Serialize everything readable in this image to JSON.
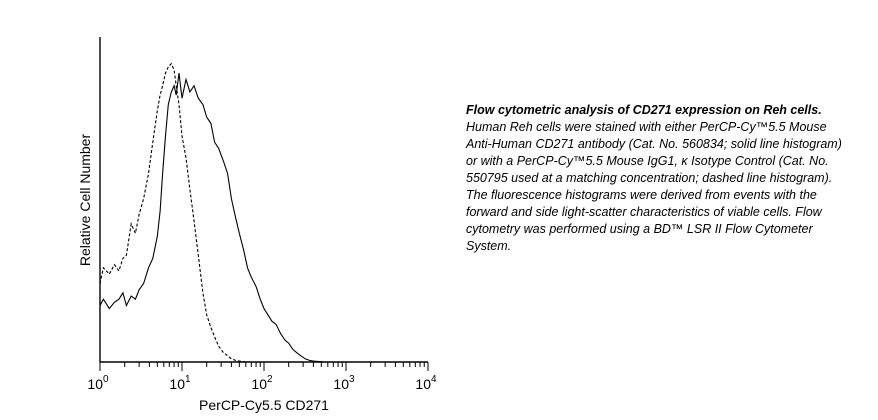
{
  "chart_data": {
    "type": "line",
    "xlabel": "PerCP-Cy5.5 CD271",
    "ylabel": "Relative Cell Number",
    "x_scale": "log",
    "xlim": [
      1,
      10000
    ],
    "ylim": [
      0,
      100
    ],
    "x_ticks": [
      {
        "base": "10",
        "exp": "0",
        "value": 1
      },
      {
        "base": "10",
        "exp": "1",
        "value": 10
      },
      {
        "base": "10",
        "exp": "2",
        "value": 100
      },
      {
        "base": "10",
        "exp": "3",
        "value": 1000
      },
      {
        "base": "10",
        "exp": "4",
        "value": 10000
      }
    ],
    "legend": "none",
    "grid": false,
    "series": [
      {
        "style": "solid",
        "x": [
          1.0,
          1.1,
          1.3,
          1.5,
          1.7,
          1.9,
          2.1,
          2.4,
          2.7,
          3.0,
          3.4,
          3.9,
          4.4,
          5.0,
          5.4,
          5.8,
          6.3,
          6.8,
          7.4,
          8.0,
          8.5,
          9.2,
          10.0,
          11.2,
          12.5,
          14.0,
          15.8,
          18.0,
          20.0,
          22.5,
          25.0,
          28.0,
          32.0,
          36.0,
          40.0,
          45.0,
          50.0,
          56.0,
          63.0,
          70.0,
          80.0,
          90.0,
          100.0,
          112.0,
          125.0,
          140.0,
          160.0,
          180.0,
          200.0,
          225.0,
          250.0,
          280.0,
          320.0,
          360.0,
          400.0,
          450.0,
          500.0,
          560.0,
          630.0,
          800.0,
          1000.0
        ],
        "values": [
          18,
          20,
          17,
          19,
          20,
          22,
          18,
          21,
          20,
          23,
          25,
          30,
          33,
          40,
          48,
          60,
          72,
          82,
          86,
          88,
          85,
          92,
          84,
          90,
          86,
          88,
          84,
          82,
          78,
          76,
          70,
          68,
          64,
          60,
          52,
          46,
          41,
          36,
          30,
          27,
          24,
          20,
          17,
          15,
          13,
          12,
          9,
          7,
          6,
          4,
          3,
          2,
          1,
          0.5,
          0.3,
          0.2,
          0.1,
          0,
          0,
          0,
          0
        ]
      },
      {
        "style": "dashed",
        "x": [
          1.0,
          1.1,
          1.3,
          1.5,
          1.7,
          1.9,
          2.1,
          2.4,
          2.7,
          3.0,
          3.4,
          3.9,
          4.4,
          5.0,
          5.4,
          5.8,
          6.3,
          6.8,
          7.4,
          8.0,
          8.5,
          9.2,
          10.0,
          11.2,
          12.5,
          14.0,
          15.8,
          18.0,
          20.0,
          22.5,
          25.0,
          28.0,
          32.0,
          36.0,
          40.0,
          45.0,
          50.0,
          56.0,
          63.0,
          70.0,
          80.0,
          100.0
        ],
        "values": [
          25,
          30,
          28,
          31,
          29,
          33,
          34,
          44,
          41,
          47,
          52,
          60,
          70,
          80,
          85,
          88,
          92,
          94,
          95,
          93,
          88,
          82,
          72,
          65,
          55,
          45,
          34,
          22,
          15,
          11,
          8,
          5,
          3,
          2,
          1,
          0.5,
          0.3,
          0.1,
          0,
          0,
          0,
          0
        ]
      }
    ]
  },
  "caption": {
    "title": "Flow cytometric analysis of CD271 expression on Reh cells.",
    "body": "Human Reh cells were stained with either PerCP-Cy™5.5 Mouse Anti-Human CD271 antibody (Cat. No. 560834; solid line histogram) or with a PerCP-Cy™5.5 Mouse IgG1, κ Isotype Control (Cat. No. 550795 used at a matching concentration; dashed line histogram). The fluorescence histograms were derived from events with the forward and side light-scatter characteristics of viable cells. Flow cytometry was performed using a BD™ LSR II Flow Cytometer System."
  }
}
